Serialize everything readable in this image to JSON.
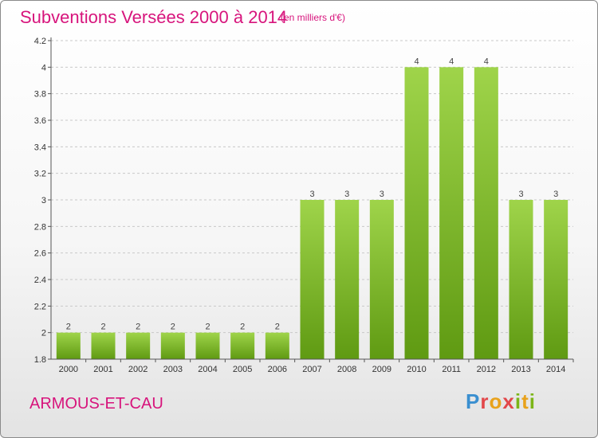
{
  "header": {
    "title": "Subventions Versées 2000 à 2014",
    "subtitle": "(en milliers d'€)"
  },
  "footer": {
    "place": "ARMOUS-ET-CAU",
    "logo_letters": [
      "P",
      "r",
      "o",
      "x",
      "i",
      "t",
      "i"
    ]
  },
  "colors": {
    "title": "#d7147c",
    "bar_light": "#9fd44a",
    "bar_dark": "#5f9a12",
    "axis": "#555555"
  },
  "chart_data": {
    "type": "bar",
    "title": "Subventions Versées 2000 à 2014",
    "subtitle": "(en milliers d'€)",
    "categories": [
      "2000",
      "2001",
      "2002",
      "2003",
      "2004",
      "2005",
      "2006",
      "2007",
      "2008",
      "2009",
      "2010",
      "2011",
      "2012",
      "2013",
      "2014"
    ],
    "values": [
      2,
      2,
      2,
      2,
      2,
      2,
      2,
      3,
      3,
      3,
      4,
      4,
      4,
      3,
      3
    ],
    "data_labels": [
      "2",
      "2",
      "2",
      "2",
      "2",
      "2",
      "2",
      "3",
      "3",
      "3",
      "4",
      "4",
      "4",
      "3",
      "3"
    ],
    "ylim": [
      1.8,
      4.2
    ],
    "yticks": [
      1.8,
      2,
      2.2,
      2.4,
      2.6,
      2.8,
      3,
      3.2,
      3.4,
      3.6,
      3.8,
      4,
      4.2
    ],
    "ytick_labels": [
      "1.8",
      "2",
      "2.2",
      "2.4",
      "2.6",
      "2.8",
      "3",
      "3.2",
      "3.4",
      "3.6",
      "3.8",
      "4",
      "4.2"
    ],
    "xlabel": "",
    "ylabel": "",
    "grid": "dashed-horizontal"
  }
}
